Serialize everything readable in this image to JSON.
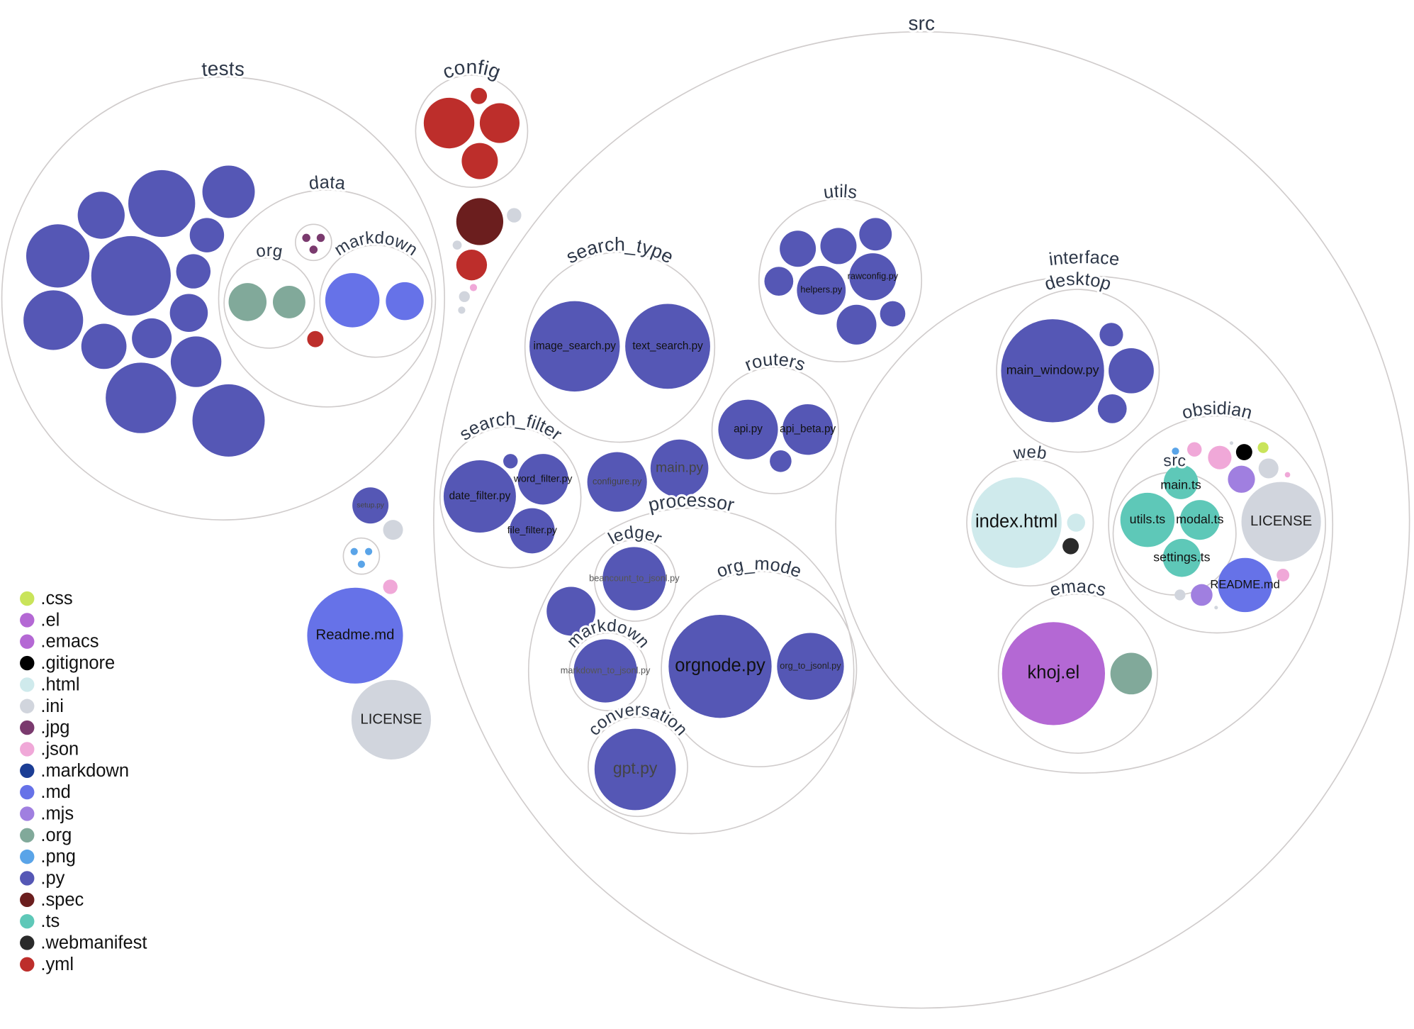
{
  "chart_data": {
    "type": "circle-packing",
    "title": "",
    "colors": {
      ".css": "#c9e45a",
      ".el": "#b468d4",
      ".emacs": "#b468d4",
      ".gitignore": "#000000",
      ".html": "#cfeaec",
      ".ini": "#d1d5dd",
      ".jpg": "#7a3a6e",
      ".json": "#f0a8d8",
      ".markdown": "#1b3d94",
      ".md": "#6672e8",
      ".mjs": "#a07fe0",
      ".org": "#81a99a",
      ".png": "#5aa4e8",
      ".py": "#5557b5",
      ".spec": "#6b1e1e",
      ".ts": "#5ec8b8",
      ".webmanifest": "#2a2a2a",
      ".yml": "#bd2e2b"
    },
    "legend": [
      ".css",
      ".el",
      ".emacs",
      ".gitignore",
      ".html",
      ".ini",
      ".jpg",
      ".json",
      ".markdown",
      ".md",
      ".mjs",
      ".org",
      ".png",
      ".py",
      ".spec",
      ".ts",
      ".webmanifest",
      ".yml"
    ],
    "folders": [
      {
        "id": "src",
        "label": "src"
      },
      {
        "id": "tests",
        "label": "tests"
      },
      {
        "id": "config",
        "label": "config"
      },
      {
        "id": "data",
        "label": "data"
      },
      {
        "id": "org",
        "label": "org"
      },
      {
        "id": "markdown",
        "label": "markdown"
      },
      {
        "id": "jpgdir",
        "label": ""
      },
      {
        "id": "pngdir",
        "label": ""
      },
      {
        "id": "search_type",
        "label": "search_type"
      },
      {
        "id": "utils",
        "label": "utils"
      },
      {
        "id": "routers",
        "label": "routers"
      },
      {
        "id": "search_filter",
        "label": "search_filter"
      },
      {
        "id": "processor",
        "label": "processor"
      },
      {
        "id": "ledger",
        "label": "ledger"
      },
      {
        "id": "pmarkdown",
        "label": "markdown"
      },
      {
        "id": "org_mode",
        "label": "org_mode"
      },
      {
        "id": "conversation",
        "label": "conversation"
      },
      {
        "id": "interface",
        "label": "interface"
      },
      {
        "id": "desktop",
        "label": "desktop"
      },
      {
        "id": "web",
        "label": "web"
      },
      {
        "id": "obsidian",
        "label": "obsidian"
      },
      {
        "id": "osrc",
        "label": "src"
      },
      {
        "id": "emacs",
        "label": "emacs"
      }
    ],
    "files": [
      {
        "ext": ".py",
        "label": ""
      },
      {
        "ext": ".py",
        "label": ""
      },
      {
        "ext": ".py",
        "label": ""
      },
      {
        "ext": ".py",
        "label": ""
      },
      {
        "ext": ".py",
        "label": ""
      },
      {
        "ext": ".py",
        "label": ""
      },
      {
        "ext": ".py",
        "label": ""
      },
      {
        "ext": ".py",
        "label": ""
      },
      {
        "ext": ".py",
        "label": ""
      },
      {
        "ext": ".py",
        "label": ""
      },
      {
        "ext": ".py",
        "label": ""
      },
      {
        "ext": ".py",
        "label": ""
      },
      {
        "ext": ".py",
        "label": ""
      },
      {
        "ext": ".py",
        "label": ""
      },
      {
        "ext": ".org",
        "label": ""
      },
      {
        "ext": ".org",
        "label": ""
      },
      {
        "ext": ".md",
        "label": ""
      },
      {
        "ext": ".md",
        "label": ""
      },
      {
        "ext": ".yml",
        "label": ""
      },
      {
        "ext": ".jpg",
        "label": ""
      },
      {
        "ext": ".jpg",
        "label": ""
      },
      {
        "ext": ".jpg",
        "label": ""
      },
      {
        "ext": ".yml",
        "label": ""
      },
      {
        "ext": ".yml",
        "label": ""
      },
      {
        "ext": ".yml",
        "label": ""
      },
      {
        "ext": ".yml",
        "label": ""
      },
      {
        "ext": ".spec",
        "label": ""
      },
      {
        "ext": ".ini",
        "label": ""
      },
      {
        "ext": ".yml",
        "label": ""
      },
      {
        "ext": ".ini",
        "label": ""
      },
      {
        "ext": ".ini",
        "label": ""
      },
      {
        "ext": ".ini",
        "label": ""
      },
      {
        "ext": ".json",
        "label": ""
      },
      {
        "ext": ".py",
        "label": "setup.py"
      },
      {
        "ext": ".ini",
        "label": ""
      },
      {
        "ext": ".png",
        "label": ""
      },
      {
        "ext": ".png",
        "label": ""
      },
      {
        "ext": ".png",
        "label": ""
      },
      {
        "ext": ".json",
        "label": ""
      },
      {
        "ext": ".md",
        "label": "Readme.md"
      },
      {
        "ext": ".ini",
        "label": "LICENSE"
      },
      {
        "ext": ".py",
        "label": "image_search.py"
      },
      {
        "ext": ".py",
        "label": "text_search.py"
      },
      {
        "ext": ".py",
        "label": ""
      },
      {
        "ext": ".py",
        "label": ""
      },
      {
        "ext": ".py",
        "label": ""
      },
      {
        "ext": ".py",
        "label": ""
      },
      {
        "ext": ".py",
        "label": "helpers.py"
      },
      {
        "ext": ".py",
        "label": "rawconfig.py"
      },
      {
        "ext": ".py",
        "label": ""
      },
      {
        "ext": ".py",
        "label": ""
      },
      {
        "ext": ".py",
        "label": "api.py"
      },
      {
        "ext": ".py",
        "label": "api_beta.py"
      },
      {
        "ext": ".py",
        "label": ""
      },
      {
        "ext": ".py",
        "label": "date_filter.py"
      },
      {
        "ext": ".py",
        "label": "word_filter.py"
      },
      {
        "ext": ".py",
        "label": "file_filter.py"
      },
      {
        "ext": ".py",
        "label": ""
      },
      {
        "ext": ".py",
        "label": "configure.py"
      },
      {
        "ext": ".py",
        "label": "main.py"
      },
      {
        "ext": ".py",
        "label": "beancount_to_jsonl.py"
      },
      {
        "ext": ".py",
        "label": ""
      },
      {
        "ext": ".py",
        "label": "markdown_to_jsonl.py"
      },
      {
        "ext": ".py",
        "label": "orgnode.py"
      },
      {
        "ext": ".py",
        "label": "org_to_jsonl.py"
      },
      {
        "ext": ".py",
        "label": "gpt.py"
      },
      {
        "ext": ".py",
        "label": "main_window.py"
      },
      {
        "ext": ".py",
        "label": ""
      },
      {
        "ext": ".py",
        "label": ""
      },
      {
        "ext": ".py",
        "label": ""
      },
      {
        "ext": ".html",
        "label": "index.html"
      },
      {
        "ext": ".html",
        "label": ""
      },
      {
        "ext": ".webmanifest",
        "label": ""
      },
      {
        "ext": ".ts",
        "label": "main.ts"
      },
      {
        "ext": ".ts",
        "label": "utils.ts"
      },
      {
        "ext": ".ts",
        "label": "modal.ts"
      },
      {
        "ext": ".ts",
        "label": "settings.ts"
      },
      {
        "ext": ".ini",
        "label": "LICENSE"
      },
      {
        "ext": ".md",
        "label": "README.md"
      },
      {
        "ext": ".png",
        "label": ""
      },
      {
        "ext": ".json",
        "label": ""
      },
      {
        "ext": ".json",
        "label": ""
      },
      {
        "ext": ".ini",
        "label": ""
      },
      {
        "ext": ".gitignore",
        "label": ""
      },
      {
        "ext": ".css",
        "label": ""
      },
      {
        "ext": ".mjs",
        "label": ""
      },
      {
        "ext": ".ini",
        "label": ""
      },
      {
        "ext": ".json",
        "label": ""
      },
      {
        "ext": ".json",
        "label": ""
      },
      {
        "ext": ".ini",
        "label": ""
      },
      {
        "ext": ".mjs",
        "label": ""
      },
      {
        "ext": ".ini",
        "label": ""
      },
      {
        "ext": ".el",
        "label": "khoj.el"
      },
      {
        "ext": ".org",
        "label": ""
      }
    ]
  }
}
